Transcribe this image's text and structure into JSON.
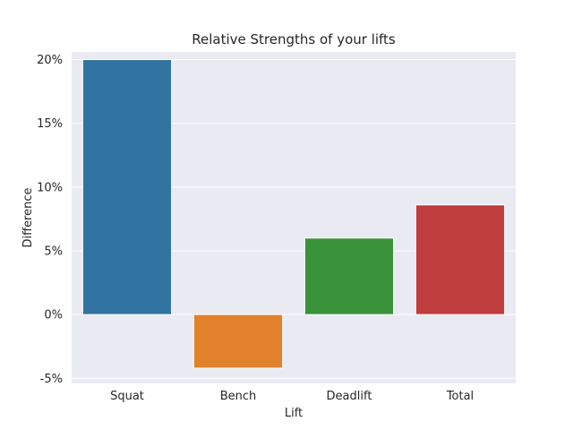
{
  "chart_data": {
    "type": "bar",
    "title": "Relative Strengths of your lifts",
    "xlabel": "Lift",
    "ylabel": "Difference",
    "categories": [
      "Squat",
      "Bench",
      "Deadlift",
      "Total"
    ],
    "values": [
      20.0,
      -4.2,
      6.0,
      8.6
    ],
    "colors": [
      "#3274a1",
      "#e1812c",
      "#3a923a",
      "#c03d3e"
    ],
    "ylim": [
      -5.4,
      20.6
    ],
    "yticks": [
      -5,
      0,
      5,
      10,
      15,
      20
    ],
    "ytick_labels": [
      "-5%",
      "0%",
      "5%",
      "10%",
      "15%",
      "20%"
    ],
    "y_unit": "%",
    "grid": true,
    "style": {
      "plot_background": "#eaeaf2",
      "grid_color": "#ffffff",
      "bar_edge_color": "#ffffff"
    }
  }
}
